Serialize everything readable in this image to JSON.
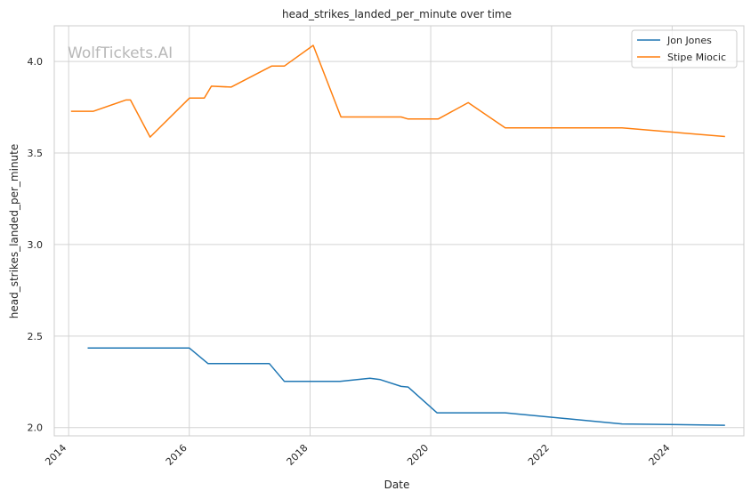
{
  "chart_data": {
    "type": "line",
    "title": "head_strikes_landed_per_minute over time",
    "xlabel": "Date",
    "ylabel": "head_strikes_landed_per_minute",
    "watermark": "WolfTickets.AI",
    "x_ticks": [
      "2014",
      "2016",
      "2018",
      "2020",
      "2022",
      "2024"
    ],
    "y_ticks": [
      "2.0",
      "2.5",
      "3.0",
      "3.5",
      "4.0"
    ],
    "xlim": [
      "2013-10-06",
      "2025-03-10"
    ],
    "ylim": [
      1.955,
      4.195
    ],
    "grid": true,
    "legend_position": "top-right",
    "series": [
      {
        "name": "Jon Jones",
        "color": "#1f77b4",
        "points": [
          [
            "2014-04-26",
            2.435
          ],
          [
            "2016-01-01",
            2.435
          ],
          [
            "2016-04-23",
            2.35
          ],
          [
            "2017-04-29",
            2.35
          ],
          [
            "2017-07-29",
            2.253
          ],
          [
            "2018-07-01",
            2.253
          ],
          [
            "2018-12-29",
            2.27
          ],
          [
            "2019-03-02",
            2.262
          ],
          [
            "2019-07-06",
            2.225
          ],
          [
            "2019-08-17",
            2.222
          ],
          [
            "2020-02-08",
            2.081
          ],
          [
            "2021-03-27",
            2.081
          ],
          [
            "2023-03-04",
            2.02
          ],
          [
            "2024-11-16",
            2.013
          ]
        ]
      },
      {
        "name": "Stipe Miocic",
        "color": "#ff7f0e",
        "points": [
          [
            "2014-01-15",
            3.728
          ],
          [
            "2014-05-31",
            3.728
          ],
          [
            "2014-12-13",
            3.79
          ],
          [
            "2015-01-10",
            3.79
          ],
          [
            "2015-05-09",
            3.587
          ],
          [
            "2016-01-02",
            3.8
          ],
          [
            "2016-04-01",
            3.8
          ],
          [
            "2016-05-14",
            3.865
          ],
          [
            "2016-09-10",
            3.86
          ],
          [
            "2017-05-13",
            3.975
          ],
          [
            "2017-07-29",
            3.975
          ],
          [
            "2018-01-20",
            4.088
          ],
          [
            "2018-07-07",
            3.697
          ],
          [
            "2019-07-06",
            3.697
          ],
          [
            "2019-08-17",
            3.686
          ],
          [
            "2020-02-15",
            3.686
          ],
          [
            "2020-08-15",
            3.775
          ],
          [
            "2021-03-27",
            3.637
          ],
          [
            "2023-03-04",
            3.637
          ],
          [
            "2024-11-16",
            3.59
          ]
        ]
      }
    ]
  }
}
